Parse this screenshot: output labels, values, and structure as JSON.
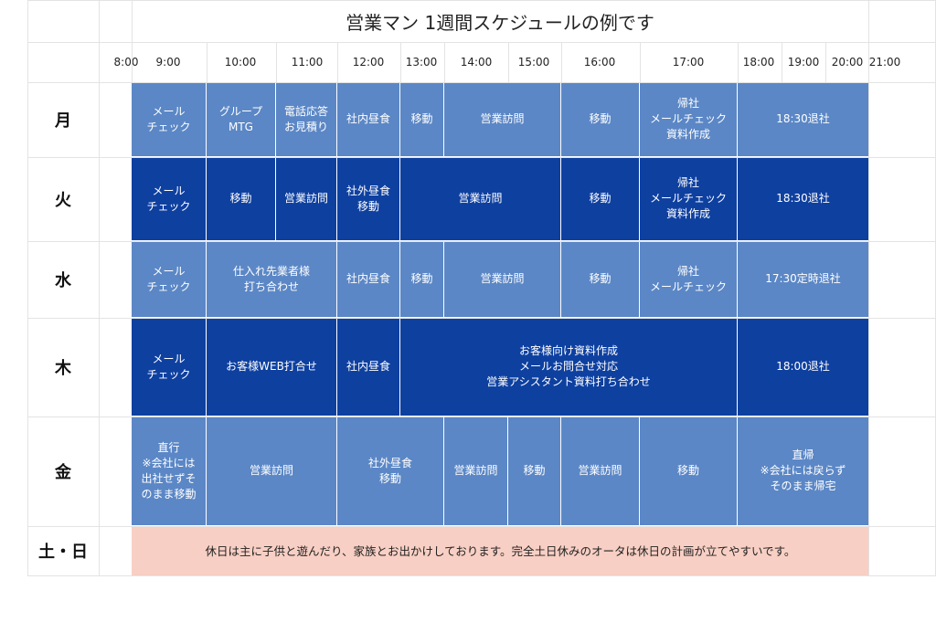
{
  "title": "営業マン 1週間スケジュールの例です",
  "times": [
    "8:00",
    "9:00",
    "10:00",
    "11:00",
    "12:00",
    "13:00",
    "14:00",
    "15:00",
    "16:00",
    "17:00",
    "18:00",
    "19:00",
    "20:00",
    "21:00"
  ],
  "days": [
    "月",
    "火",
    "水",
    "木",
    "金",
    "土・日"
  ],
  "colors": {
    "light": "#5b87c6",
    "dark": "#0e40a0",
    "weekend": "#f8cfc4"
  },
  "events": {
    "mon": [
      "メール\nチェック",
      "グループ\nMTG",
      "電話応答\nお見積り",
      "社内昼食",
      "移動",
      "営業訪問",
      "移動",
      "帰社\nメールチェック\n資料作成",
      "18:30退社"
    ],
    "tue": [
      "メール\nチェック",
      "移動",
      "営業訪問",
      "社外昼食\n移動",
      "営業訪問",
      "移動",
      "帰社\nメールチェック\n資料作成",
      "18:30退社"
    ],
    "wed": [
      "メール\nチェック",
      "仕入れ先業者様\n打ち合わせ",
      "社内昼食",
      "移動",
      "営業訪問",
      "移動",
      "帰社\nメールチェック",
      "17:30定時退社"
    ],
    "thu": [
      "メール\nチェック",
      "お客様WEB打合せ",
      "社内昼食",
      "お客様向け資料作成\nメールお問合せ対応\n営業アシスタント資料打ち合わせ",
      "18:00退社"
    ],
    "fri": [
      "直行\n※会社には\n出社せずそ\nのまま移動",
      "営業訪問",
      "社外昼食\n移動",
      "営業訪問",
      "移動",
      "営業訪問",
      "移動",
      "直帰\n※会社には戻らず\nそのまま帰宅"
    ],
    "weekend": "休日は主に子供と遊んだり、家族とお出かけしております。完全土日休みのオータは休日の計画が立てやすいです。"
  }
}
